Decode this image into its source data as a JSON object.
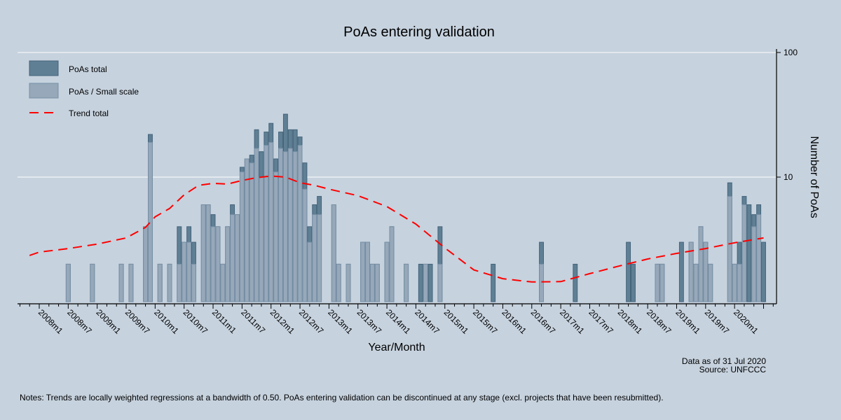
{
  "chart_data": {
    "type": "bar",
    "title": "PoAs entering validation",
    "xlabel": "Year/Month",
    "ylabel": "Number of PoAs",
    "yscale": "log",
    "ylim": [
      1,
      100
    ],
    "xlim": [
      "2007m9",
      "2020m9"
    ],
    "grid": true,
    "legend_position": "top-left",
    "x_tick_labels": [
      "2008m1",
      "2008m7",
      "2009m1",
      "2009m7",
      "2010m1",
      "2010m7",
      "2011m1",
      "2011m7",
      "2012m1",
      "2012m7",
      "2013m1",
      "2013m7",
      "2014m1",
      "2014m7",
      "2015m1",
      "2015m7",
      "2016m1",
      "2016m7",
      "2017m1",
      "2017m7",
      "2018m1",
      "2018m7",
      "2019m1",
      "2019m7",
      "2020m1"
    ],
    "y_tick_labels": [
      "100",
      "10"
    ],
    "legend": [
      "PoAs total",
      "PoAs / Small scale",
      "Trend total"
    ],
    "colors": {
      "total": "#5f7f94",
      "small": "#96a8b9",
      "trend": "#ff0000",
      "background": "#c6d2de"
    },
    "bars": [
      {
        "month": "2008m7",
        "total": 2,
        "small": 2
      },
      {
        "month": "2008m12",
        "total": 2,
        "small": 2
      },
      {
        "month": "2009m6",
        "total": 2,
        "small": 2
      },
      {
        "month": "2009m8",
        "total": 2,
        "small": 2
      },
      {
        "month": "2009m11",
        "total": 4,
        "small": 4
      },
      {
        "month": "2009m12",
        "total": 22,
        "small": 19
      },
      {
        "month": "2010m2",
        "total": 2,
        "small": 2
      },
      {
        "month": "2010m4",
        "total": 2,
        "small": 2
      },
      {
        "month": "2010m6",
        "total": 4,
        "small": 2
      },
      {
        "month": "2010m7",
        "total": 3,
        "small": 3
      },
      {
        "month": "2010m8",
        "total": 4,
        "small": 3
      },
      {
        "month": "2010m9",
        "total": 3,
        "small": 2
      },
      {
        "month": "2010m11",
        "total": 6,
        "small": 6
      },
      {
        "month": "2010m12",
        "total": 6,
        "small": 6
      },
      {
        "month": "2011m1",
        "total": 5,
        "small": 4
      },
      {
        "month": "2011m2",
        "total": 4,
        "small": 4
      },
      {
        "month": "2011m3",
        "total": 2,
        "small": 2
      },
      {
        "month": "2011m4",
        "total": 4,
        "small": 4
      },
      {
        "month": "2011m5",
        "total": 6,
        "small": 5
      },
      {
        "month": "2011m6",
        "total": 5,
        "small": 5
      },
      {
        "month": "2011m7",
        "total": 12,
        "small": 11
      },
      {
        "month": "2011m8",
        "total": 14,
        "small": 14
      },
      {
        "month": "2011m9",
        "total": 15,
        "small": 13
      },
      {
        "month": "2011m10",
        "total": 24,
        "small": 17
      },
      {
        "month": "2011m11",
        "total": 16,
        "small": 10
      },
      {
        "month": "2011m12",
        "total": 23,
        "small": 18
      },
      {
        "month": "2012m1",
        "total": 27,
        "small": 19
      },
      {
        "month": "2012m2",
        "total": 14,
        "small": 11
      },
      {
        "month": "2012m3",
        "total": 23,
        "small": 17
      },
      {
        "month": "2012m4",
        "total": 32,
        "small": 16
      },
      {
        "month": "2012m5",
        "total": 24,
        "small": 17
      },
      {
        "month": "2012m6",
        "total": 24,
        "small": 16
      },
      {
        "month": "2012m7",
        "total": 21,
        "small": 18
      },
      {
        "month": "2012m8",
        "total": 13,
        "small": 8
      },
      {
        "month": "2012m9",
        "total": 4,
        "small": 3
      },
      {
        "month": "2012m10",
        "total": 6,
        "small": 5
      },
      {
        "month": "2012m11",
        "total": 7,
        "small": 5
      },
      {
        "month": "2013m2",
        "total": 6,
        "small": 6
      },
      {
        "month": "2013m3",
        "total": 2,
        "small": 2
      },
      {
        "month": "2013m5",
        "total": 2,
        "small": 2
      },
      {
        "month": "2013m8",
        "total": 3,
        "small": 3
      },
      {
        "month": "2013m9",
        "total": 3,
        "small": 3
      },
      {
        "month": "2013m10",
        "total": 2,
        "small": 2
      },
      {
        "month": "2013m11",
        "total": 2,
        "small": 2
      },
      {
        "month": "2014m1",
        "total": 3,
        "small": 3
      },
      {
        "month": "2014m2",
        "total": 4,
        "small": 4
      },
      {
        "month": "2014m5",
        "total": 2,
        "small": 2
      },
      {
        "month": "2014m8",
        "total": 2,
        "small": null
      },
      {
        "month": "2014m9",
        "total": 2,
        "small": 2
      },
      {
        "month": "2014m10",
        "total": 2,
        "small": null
      },
      {
        "month": "2014m12",
        "total": 4,
        "small": 2
      },
      {
        "month": "2015m11",
        "total": 2,
        "small": null
      },
      {
        "month": "2016m9",
        "total": 3,
        "small": 2
      },
      {
        "month": "2017m4",
        "total": 2,
        "small": null
      },
      {
        "month": "2018m3",
        "total": 3,
        "small": null
      },
      {
        "month": "2018m4",
        "total": 2,
        "small": null
      },
      {
        "month": "2018m9",
        "total": 2,
        "small": 2
      },
      {
        "month": "2018m10",
        "total": 2,
        "small": 2
      },
      {
        "month": "2019m2",
        "total": 3,
        "small": null
      },
      {
        "month": "2019m4",
        "total": 3,
        "small": 3
      },
      {
        "month": "2019m5",
        "total": 2,
        "small": 2
      },
      {
        "month": "2019m6",
        "total": 4,
        "small": 4
      },
      {
        "month": "2019m7",
        "total": 3,
        "small": 3
      },
      {
        "month": "2019m8",
        "total": 2,
        "small": 2
      },
      {
        "month": "2019m12",
        "total": 9,
        "small": 7
      },
      {
        "month": "2020m1",
        "total": 2,
        "small": 2
      },
      {
        "month": "2020m2",
        "total": 3,
        "small": 2
      },
      {
        "month": "2020m3",
        "total": 7,
        "small": 6
      },
      {
        "month": "2020m4",
        "total": 6,
        "small": null
      },
      {
        "month": "2020m5",
        "total": 5,
        "small": 4
      },
      {
        "month": "2020m6",
        "total": 6,
        "small": 5
      },
      {
        "month": "2020m7",
        "total": 3,
        "small": null
      }
    ],
    "trend": [
      [
        "2007m11",
        2.35
      ],
      [
        "2008m1",
        2.5
      ],
      [
        "2008m7",
        2.67
      ],
      [
        "2009m1",
        2.9
      ],
      [
        "2009m7",
        3.25
      ],
      [
        "2009m11",
        3.95
      ],
      [
        "2010m1",
        4.8
      ],
      [
        "2010m4",
        5.6
      ],
      [
        "2010m7",
        7.2
      ],
      [
        "2010m10",
        8.6
      ],
      [
        "2011m1",
        8.9
      ],
      [
        "2011m4",
        8.8
      ],
      [
        "2011m7",
        9.4
      ],
      [
        "2011m10",
        9.9
      ],
      [
        "2012m1",
        10.2
      ],
      [
        "2012m4",
        10.0
      ],
      [
        "2012m7",
        9.0
      ],
      [
        "2012m10",
        8.6
      ],
      [
        "2013m1",
        8.0
      ],
      [
        "2013m7",
        7.1
      ],
      [
        "2014m1",
        5.8
      ],
      [
        "2014m7",
        4.2
      ],
      [
        "2015m1",
        2.7
      ],
      [
        "2015m7",
        1.8
      ],
      [
        "2016m1",
        1.53
      ],
      [
        "2016m7",
        1.44
      ],
      [
        "2017m1",
        1.45
      ],
      [
        "2017m7",
        1.68
      ],
      [
        "2018m1",
        1.93
      ],
      [
        "2018m7",
        2.2
      ],
      [
        "2019m1",
        2.44
      ],
      [
        "2019m7",
        2.67
      ],
      [
        "2020m1",
        2.97
      ],
      [
        "2020m7",
        3.25
      ]
    ]
  },
  "footer": {
    "data_as_of": "Data as of 31 Jul 2020",
    "source": "Source: UNFCCC",
    "notes": "Notes: Trends are locally weighted regressions at a bandwidth of 0.50. PoAs entering validation can be discontinued at any stage (excl. projects that have been resubmitted)."
  }
}
